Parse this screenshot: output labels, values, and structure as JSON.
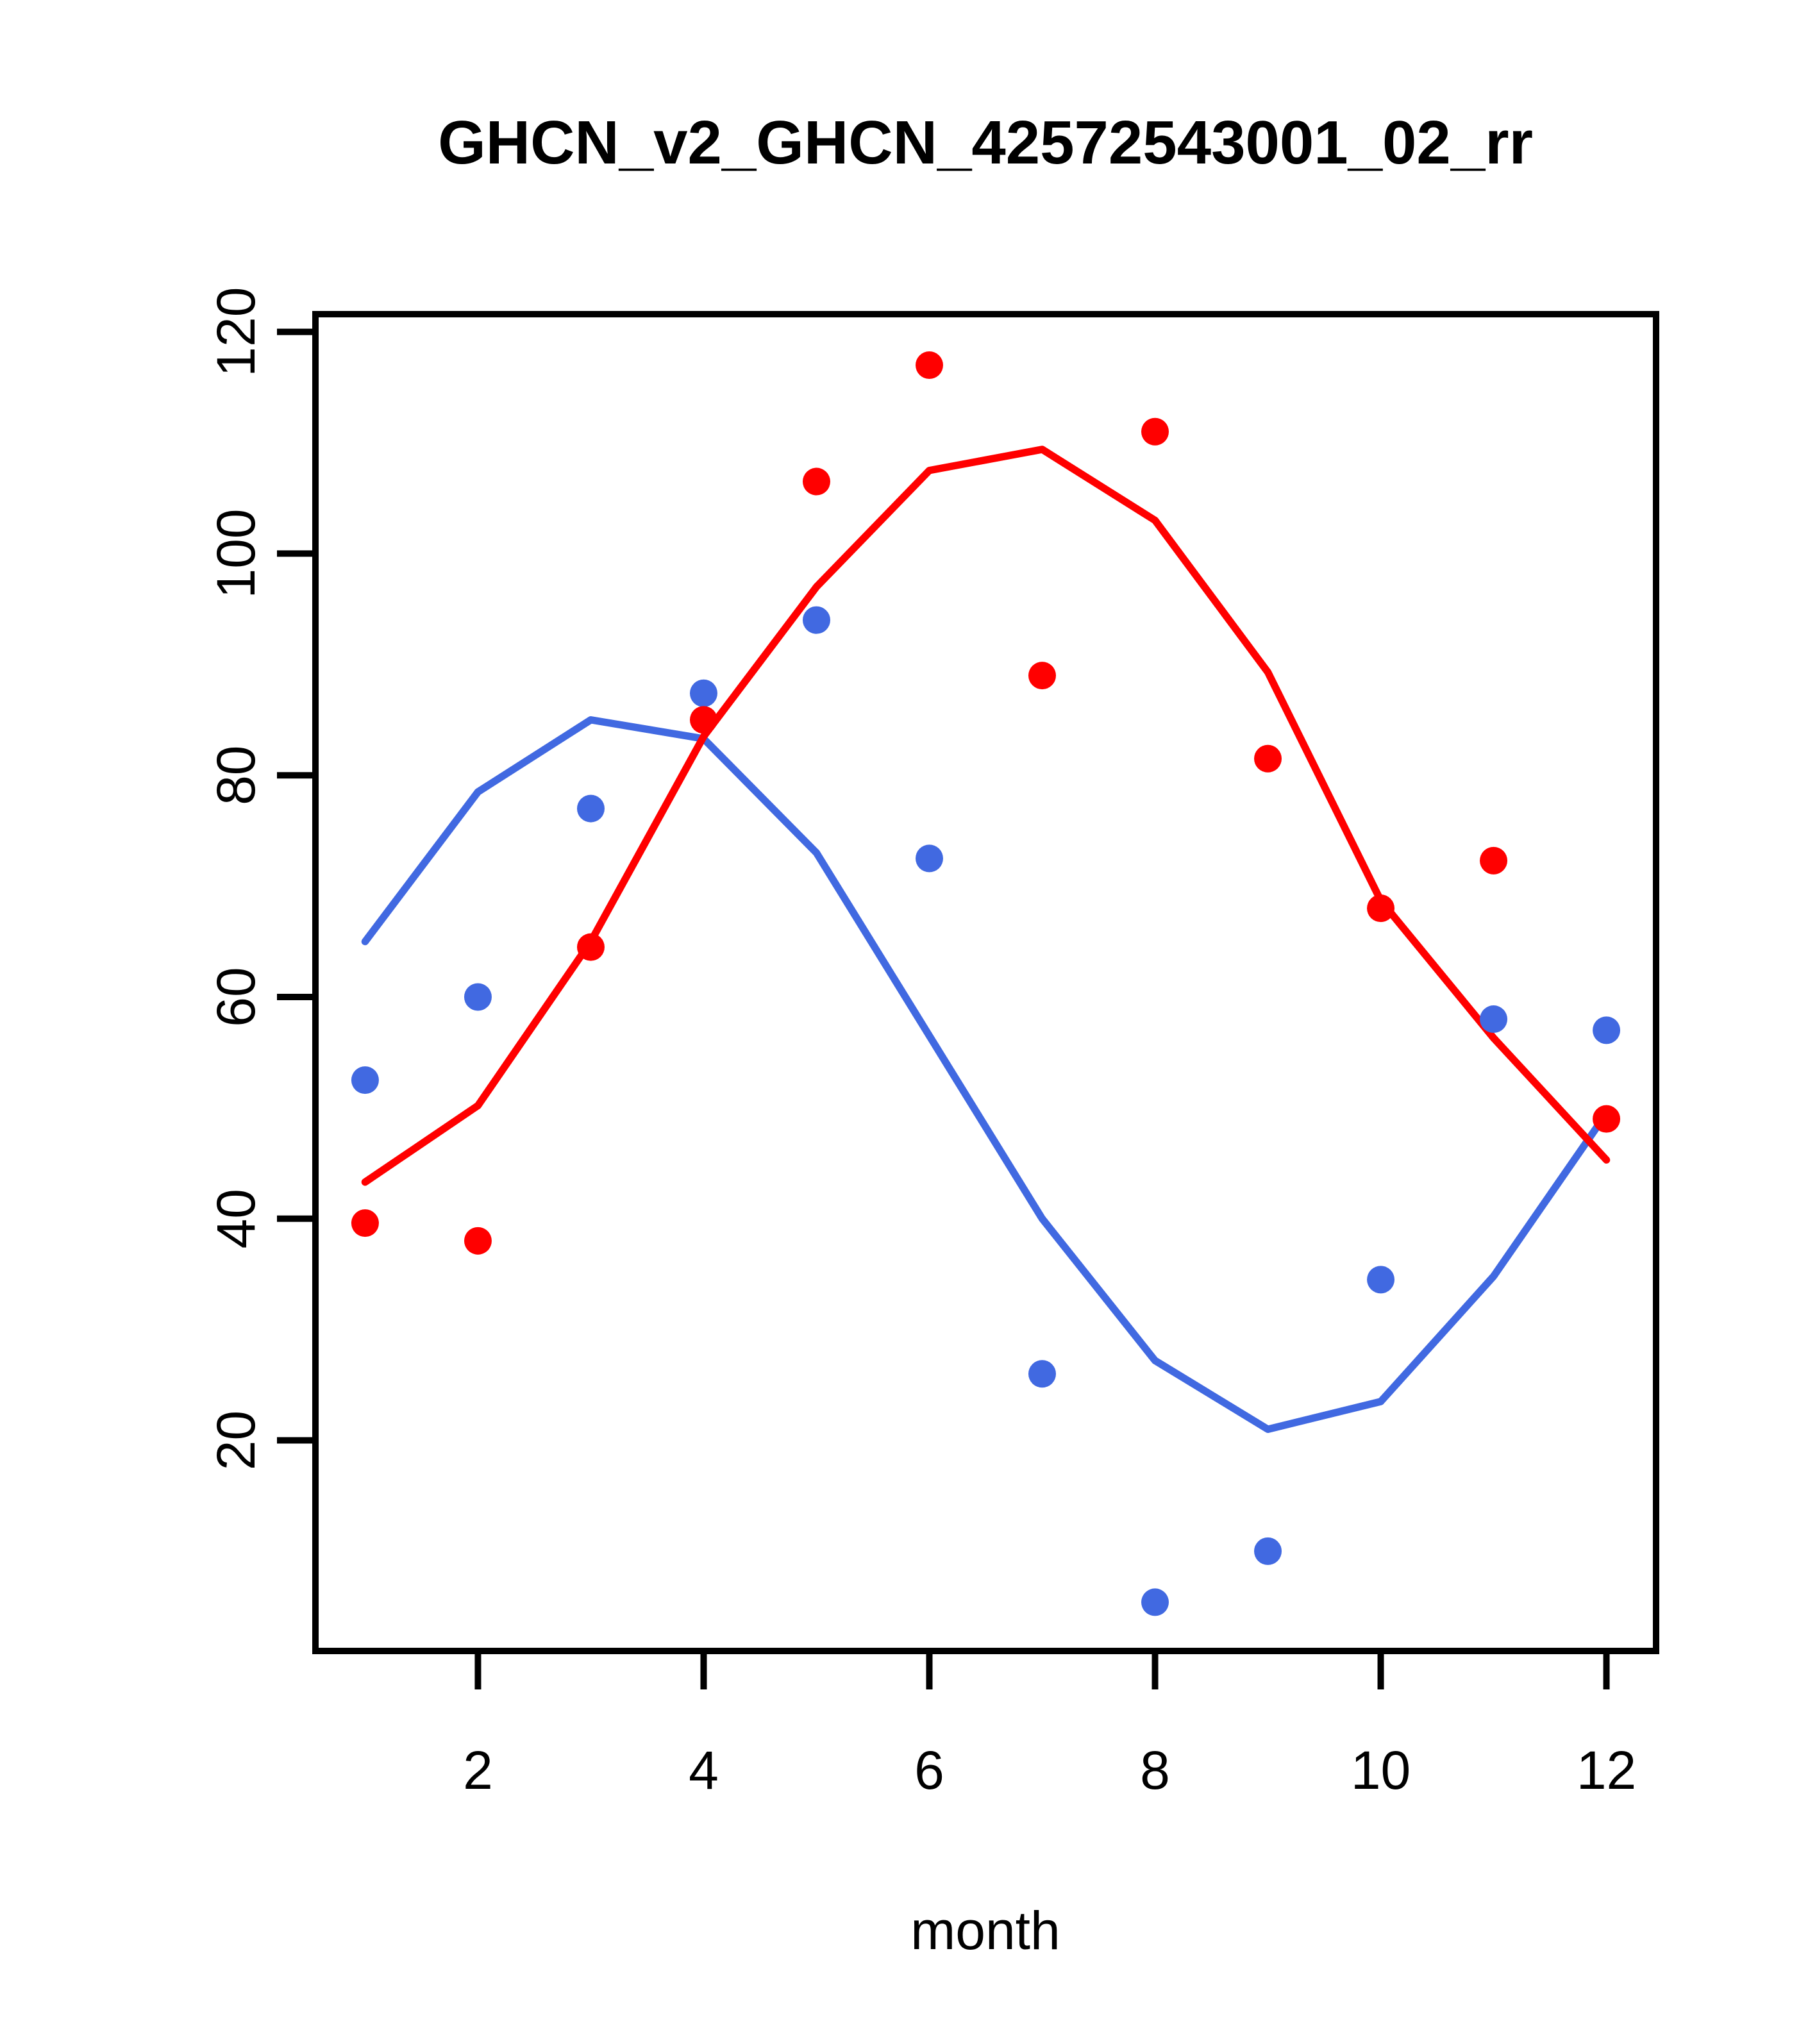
{
  "page": {
    "background": "#ffffff"
  },
  "chart_data": {
    "type": "scatter",
    "title": "GHCN_v2_GHCN_42572543001_02_rr",
    "xlabel": "month",
    "ylabel": "",
    "grid": false,
    "legend_position": "none",
    "xlim": [
      0.56,
      12.44
    ],
    "ylim": [
      1.0,
      121.6
    ],
    "x_ticks": [
      2,
      4,
      6,
      8,
      10,
      12
    ],
    "y_ticks": [
      20,
      40,
      60,
      80,
      100,
      120
    ],
    "x": [
      1,
      2,
      3,
      4,
      5,
      6,
      7,
      8,
      9,
      10,
      11,
      12
    ],
    "series": [
      {
        "name": "blue-points",
        "kind": "points",
        "color": "#4169E1",
        "values": [
          52.5,
          60,
          77,
          87.4,
          94,
          72.5,
          26,
          5.4,
          10,
          34.5,
          58,
          57
        ]
      },
      {
        "name": "red-points",
        "kind": "points",
        "color": "#FF0000",
        "values": [
          39.6,
          38,
          64.5,
          85,
          106.5,
          117,
          89,
          111,
          81.5,
          68,
          72.3,
          49
        ]
      },
      {
        "name": "blue-smooth-line",
        "kind": "line",
        "color": "#4169E1",
        "values": [
          65,
          78.5,
          85,
          83.3,
          73,
          56.5,
          40,
          27.2,
          21,
          23.5,
          34.8,
          49.5
        ]
      },
      {
        "name": "red-smooth-line",
        "kind": "line",
        "color": "#FF0000",
        "values": [
          43.3,
          50.2,
          65,
          83.5,
          97,
          107.5,
          109.4,
          103,
          89.3,
          68.7,
          56.3,
          45.3
        ]
      }
    ]
  }
}
